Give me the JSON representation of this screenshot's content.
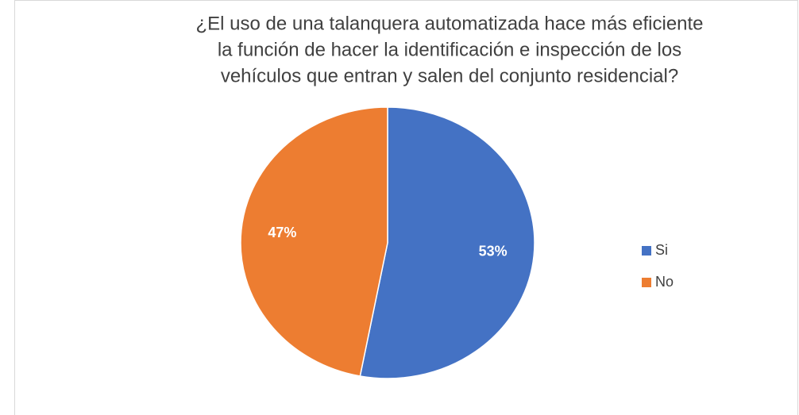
{
  "chart_data": {
    "type": "pie",
    "title": [
      "¿El uso de una talanquera automatizada hace más eficiente",
      "la función de hacer la identificación e inspección de los",
      "vehículos que entran y salen del conjunto residencial?"
    ],
    "categories": [
      "Si",
      "No"
    ],
    "values": [
      53,
      47
    ],
    "value_labels": [
      "53%",
      "47%"
    ],
    "colors": [
      "#4472c4",
      "#ed7d31"
    ],
    "legend": "right"
  }
}
